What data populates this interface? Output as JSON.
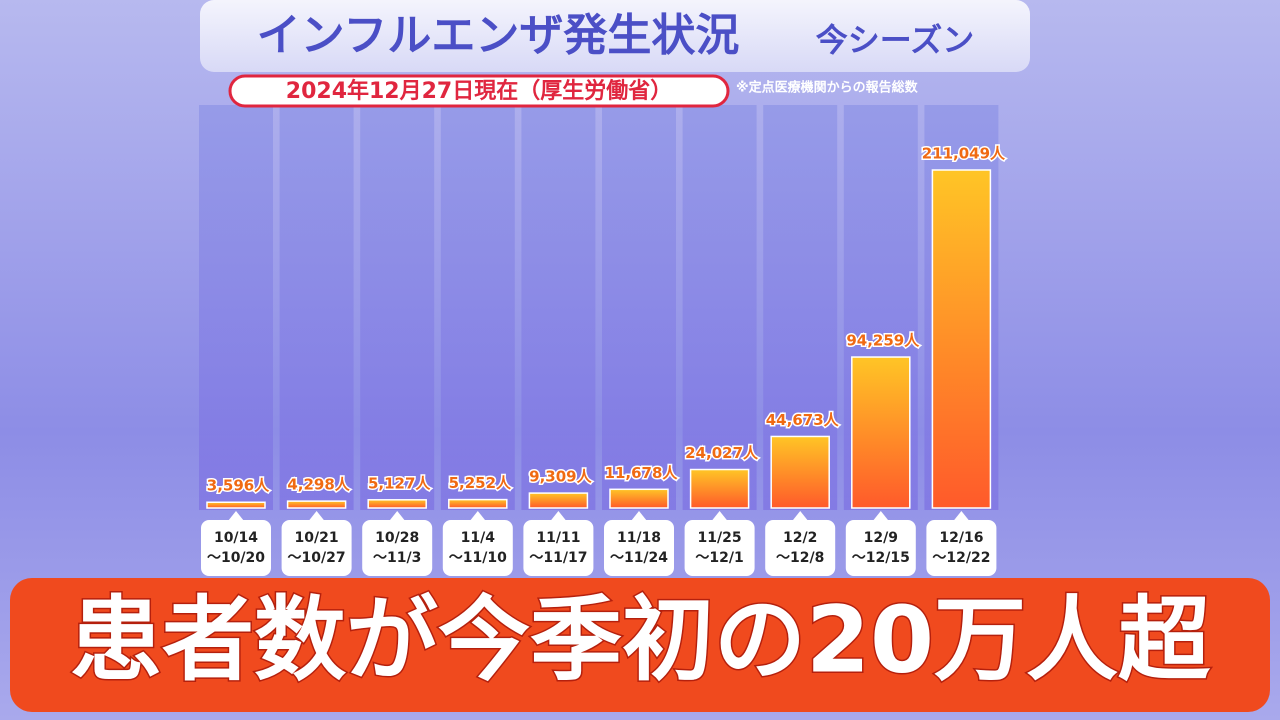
{
  "chart_data": {
    "type": "bar",
    "title": "インフルエンザ発生状況",
    "subtitle": "今シーズン",
    "date_label": "2024年12月27日現在（厚生労働省）",
    "note": "※定点医療機関からの報告総数",
    "headline": "患者数が今季初の20万人超",
    "categories": [
      "10/14\n〜10/20",
      "10/21\n〜10/27",
      "10/28\n〜11/3",
      "11/4\n〜11/10",
      "11/11\n〜11/17",
      "11/18\n〜11/24",
      "11/25\n〜12/1",
      "12/2\n〜12/8",
      "12/9\n〜12/15",
      "12/16\n〜12/22"
    ],
    "values": [
      3596,
      4298,
      5127,
      5252,
      9309,
      11678,
      24027,
      44673,
      94259,
      211049
    ],
    "value_labels": [
      "3,596人",
      "4,298人",
      "5,127人",
      "5,252人",
      "9,309人",
      "11,678人",
      "24,027人",
      "44,673人",
      "94,259人",
      "211,049人"
    ],
    "color": "#f7a21b"
  }
}
